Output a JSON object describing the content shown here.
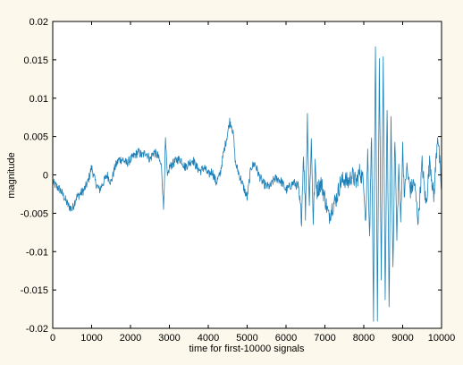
{
  "chart_data": {
    "type": "line",
    "title": "",
    "xlabel": "time for first-10000 signals",
    "ylabel": "magnitude",
    "xlim": [
      0,
      10000
    ],
    "ylim": [
      -0.02,
      0.02
    ],
    "x_ticks": [
      0,
      1000,
      2000,
      3000,
      4000,
      5000,
      6000,
      7000,
      8000,
      9000,
      10000
    ],
    "x_tick_labels": [
      "0",
      "1000",
      "2000",
      "3000",
      "4000",
      "5000",
      "6000",
      "7000",
      "8000",
      "9000",
      "10000"
    ],
    "y_ticks": [
      -0.02,
      -0.015,
      -0.01,
      -0.005,
      0,
      0.005,
      0.01,
      0.015,
      0.02
    ],
    "y_tick_labels": [
      "-0.02",
      "-0.015",
      "-0.01",
      "-0.005",
      "0",
      "0.005",
      "0.01",
      "0.015",
      "0.02"
    ],
    "grid": false,
    "series": [
      {
        "color": "#1c7fb6",
        "x": [
          0,
          100,
          200,
          300,
          400,
          500,
          600,
          700,
          800,
          900,
          1000,
          1100,
          1200,
          1300,
          1400,
          1500,
          1600,
          1700,
          1800,
          1900,
          2000,
          2100,
          2200,
          2300,
          2400,
          2500,
          2600,
          2700,
          2800,
          2850,
          2900,
          2950,
          3000,
          3100,
          3200,
          3300,
          3400,
          3500,
          3600,
          3700,
          3800,
          3900,
          4000,
          4100,
          4200,
          4300,
          4400,
          4500,
          4550,
          4600,
          4650,
          4700,
          4800,
          4900,
          5000,
          5100,
          5200,
          5300,
          5400,
          5500,
          5600,
          5700,
          5800,
          5900,
          6000,
          6100,
          6200,
          6300,
          6400,
          6450,
          6500,
          6550,
          6600,
          6650,
          6700,
          6750,
          6800,
          6900,
          7000,
          7100,
          7200,
          7300,
          7400,
          7500,
          7600,
          7700,
          7800,
          7900,
          8000,
          8050,
          8100,
          8150,
          8200,
          8250,
          8300,
          8350,
          8400,
          8450,
          8500,
          8550,
          8600,
          8650,
          8700,
          8750,
          8800,
          8850,
          8900,
          8950,
          9000,
          9050,
          9100,
          9200,
          9300,
          9400,
          9500,
          9600,
          9700,
          9800,
          9900,
          10000
        ],
        "y": [
          -0.001,
          -0.0015,
          -0.002,
          -0.003,
          -0.004,
          -0.0045,
          -0.003,
          -0.0025,
          -0.002,
          -0.001,
          0.001,
          -0.001,
          -0.002,
          -0.001,
          0,
          -0.001,
          0.001,
          0.002,
          0.002,
          0.0015,
          0.002,
          0.0025,
          0.003,
          0.0025,
          0.003,
          0.002,
          0.003,
          0.0025,
          0.001,
          -0.0045,
          0.0045,
          -0.0005,
          0.001,
          0.0015,
          0.002,
          0.002,
          0.001,
          0.0015,
          0.002,
          0.001,
          0.0005,
          0.001,
          0,
          0.0005,
          -0.001,
          0,
          0.003,
          0.0055,
          0.007,
          0.0065,
          0.005,
          0.0015,
          0,
          -0.0015,
          -0.003,
          0.001,
          0.0015,
          0,
          -0.001,
          -0.0015,
          -0.0015,
          -0.0005,
          -0.0005,
          -0.001,
          -0.002,
          -0.0015,
          -0.001,
          -0.0015,
          -0.0055,
          0.003,
          -0.005,
          0.0075,
          -0.004,
          0.0045,
          -0.006,
          0.001,
          -0.002,
          -0.001,
          -0.003,
          -0.0055,
          -0.004,
          -0.003,
          -0.001,
          -0.0005,
          -0.001,
          0,
          -0.001,
          0.0005,
          -0.001,
          -0.006,
          0.003,
          -0.008,
          0.006,
          -0.0185,
          0.0165,
          -0.018,
          0.015,
          -0.014,
          0.0155,
          -0.017,
          0.0095,
          -0.0175,
          0.0075,
          -0.012,
          0.005,
          -0.0085,
          0.001,
          -0.006,
          0.0035,
          -0.003,
          0.001,
          -0.002,
          -0.001,
          -0.006,
          0.0015,
          -0.004,
          0.002,
          -0.003,
          0.0055,
          -0.002
        ]
      }
    ]
  }
}
